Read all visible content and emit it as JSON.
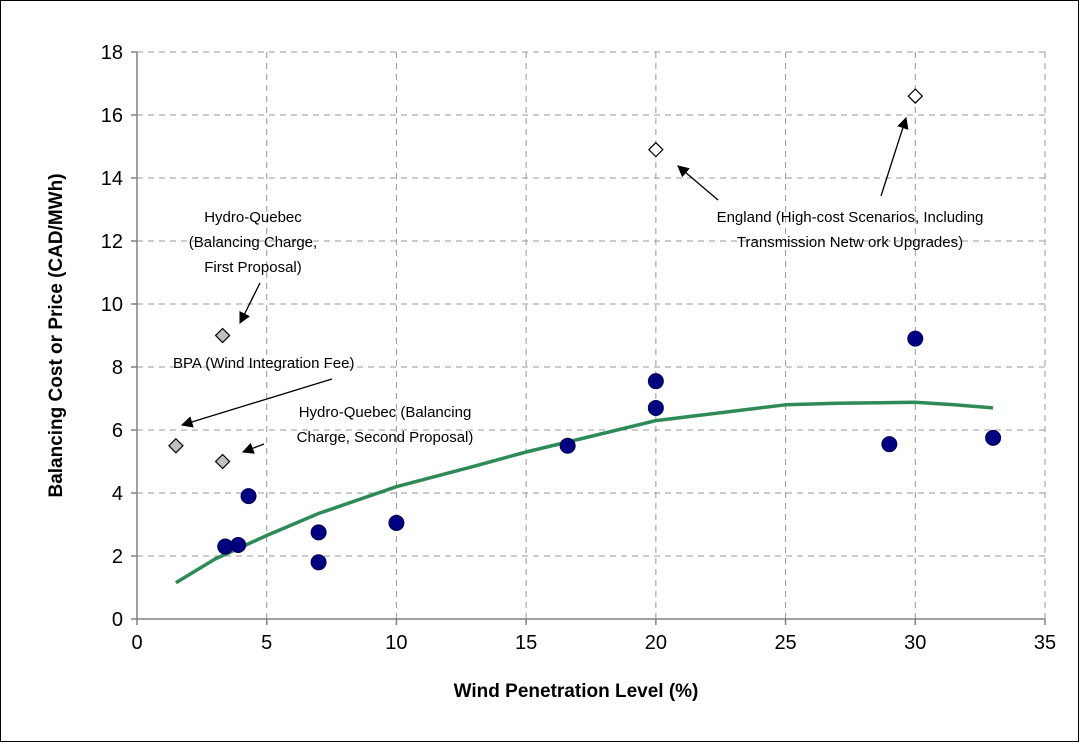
{
  "chart_data": {
    "type": "scatter",
    "xlabel": "Wind Penetration Level (%)",
    "ylabel": "Balancing Cost or Price (CAD/MWh)",
    "xlim": [
      0,
      35
    ],
    "ylim": [
      0,
      18
    ],
    "x_ticks": [
      "0",
      "5",
      "10",
      "15",
      "20",
      "25",
      "30",
      "35"
    ],
    "y_ticks": [
      "0",
      "2",
      "4",
      "6",
      "8",
      "10",
      "12",
      "14",
      "16",
      "18"
    ],
    "grid": true,
    "legend": "none",
    "colors": {
      "study_points": "#000080",
      "trend_line": "#2e8b57",
      "hydro_bpa_markers": "#c0c0c0",
      "england_markers": "#ffffff"
    },
    "series": [
      {
        "marker": "circle",
        "points": [
          [
            3.4,
            2.3
          ],
          [
            3.9,
            2.35
          ],
          [
            4.3,
            3.9
          ],
          [
            7.0,
            2.75
          ],
          [
            7.0,
            1.8
          ],
          [
            10.0,
            3.05
          ],
          [
            16.6,
            5.5
          ],
          [
            20.0,
            7.55
          ],
          [
            20.0,
            6.7
          ],
          [
            29.0,
            5.55
          ],
          [
            30.0,
            8.9
          ],
          [
            33.0,
            5.75
          ]
        ]
      },
      {
        "marker": "diamond-gray",
        "points": [
          [
            3.3,
            9.0
          ],
          [
            1.5,
            5.5
          ],
          [
            3.3,
            5.0
          ]
        ]
      },
      {
        "marker": "diamond-open",
        "points": [
          [
            20.0,
            14.9
          ],
          [
            30.0,
            16.6
          ]
        ]
      },
      {
        "type": "line",
        "points": [
          [
            1.5,
            1.15
          ],
          [
            3,
            1.9
          ],
          [
            5,
            2.65
          ],
          [
            7,
            3.35
          ],
          [
            10,
            4.2
          ],
          [
            13,
            4.85
          ],
          [
            15,
            5.3
          ],
          [
            17,
            5.7
          ],
          [
            20,
            6.3
          ],
          [
            23,
            6.6
          ],
          [
            25,
            6.8
          ],
          [
            27,
            6.85
          ],
          [
            30,
            6.88
          ],
          [
            31.5,
            6.8
          ],
          [
            33,
            6.7
          ]
        ]
      }
    ],
    "annotations": [
      {
        "lines": [
          "Hydro-Quebec",
          "(Balancing Charge,",
          "First Proposal)"
        ],
        "arrow_to": [
          3.3,
          9.0
        ]
      },
      {
        "lines": [
          "BPA (Wind Integration Fee)"
        ],
        "arrow_to": [
          1.5,
          5.5
        ]
      },
      {
        "lines": [
          "Hydro-Quebec (Balancing",
          "Charge, Second Proposal)"
        ],
        "arrow_to": [
          3.3,
          5.0
        ]
      },
      {
        "lines": [
          "England (High-cost Scenarios, Including",
          "Transmission Netw ork Upgrades)"
        ],
        "arrow_to": [
          [
            20.0,
            14.9
          ],
          [
            30.0,
            16.6
          ]
        ]
      }
    ]
  }
}
